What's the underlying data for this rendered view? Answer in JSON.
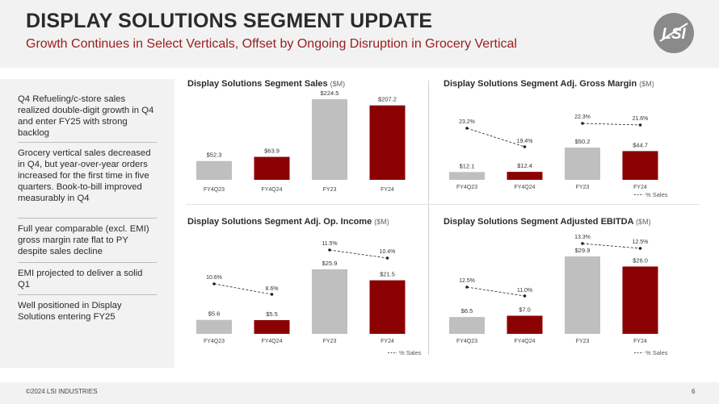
{
  "header": {
    "title": "DISPLAY SOLUTIONS SEGMENT UPDATE",
    "subtitle": "Growth Continues in Select Verticals, Offset by Ongoing Disruption in Grocery Vertical"
  },
  "sidebar": {
    "items": [
      "Q4 Refueling/c-store sales realized double-digit growth in Q4 and enter FY25 with strong backlog",
      "Grocery vertical sales decreased in Q4, but year-over-year orders  increased for the first time in five quarters. Book-to-bill improved measurably in Q4",
      "Full year comparable (excl. EMI) gross margin rate flat to PY despite sales decline",
      "EMI projected to deliver a solid Q1",
      "Well positioned in Display Solutions entering FY25"
    ]
  },
  "colors": {
    "gray_bar": "#bfbfbf",
    "red_bar": "#8b0000",
    "accent": "#9b1c1c"
  },
  "chart_data": [
    {
      "type": "bar",
      "title": "Display Solutions Segment Sales",
      "unit": "($M)",
      "categories": [
        "FY4Q23",
        "FY4Q24",
        "FY23",
        "FY24"
      ],
      "values": [
        52.3,
        63.9,
        224.5,
        207.2
      ],
      "value_labels": [
        "$52.3",
        "$63.9",
        "$224.5",
        "$207.2"
      ],
      "bar_colors": [
        "#bfbfbf",
        "#8b0000",
        "#bfbfbf",
        "#8b0000"
      ]
    },
    {
      "type": "bar",
      "title": "Display Solutions Segment Adj. Gross Margin",
      "unit": "($M)",
      "categories": [
        "FY4Q23",
        "FY4Q24",
        "FY23",
        "FY24"
      ],
      "values": [
        12.1,
        12.4,
        50.2,
        44.7
      ],
      "value_labels": [
        "$12.1",
        "$12.4",
        "$50.2",
        "$44.7"
      ],
      "bar_colors": [
        "#bfbfbf",
        "#8b0000",
        "#bfbfbf",
        "#8b0000"
      ],
      "pct_sales": [
        23.2,
        19.4,
        22.3,
        21.6
      ],
      "pct_labels": [
        "23.2%",
        "19.4%",
        "22.3%",
        "21.6%"
      ],
      "legend": "% Sales"
    },
    {
      "type": "bar",
      "title": "Display Solutions Segment Adj. Op. Income",
      "unit": "($M)",
      "categories": [
        "FY4Q23",
        "FY4Q24",
        "FY23",
        "FY24"
      ],
      "values": [
        5.6,
        5.5,
        25.9,
        21.5
      ],
      "value_labels": [
        "$5.6",
        "$5.5",
        "$25.9",
        "$21.5"
      ],
      "bar_colors": [
        "#bfbfbf",
        "#8b0000",
        "#bfbfbf",
        "#8b0000"
      ],
      "pct_sales": [
        10.6,
        8.6,
        11.5,
        10.4
      ],
      "pct_labels": [
        "10.6%",
        "8.6%",
        "11.5%",
        "10.4%"
      ],
      "legend": "% Sales"
    },
    {
      "type": "bar",
      "title": "Display Solutions Segment Adjusted EBITDA",
      "unit": "($M)",
      "categories": [
        "FY4Q23",
        "FY4Q24",
        "FY23",
        "FY24"
      ],
      "values": [
        6.5,
        7.0,
        29.9,
        26.0
      ],
      "value_labels": [
        "$6.5",
        "$7.0",
        "$29.9",
        "$26.0"
      ],
      "bar_colors": [
        "#bfbfbf",
        "#8b0000",
        "#bfbfbf",
        "#8b0000"
      ],
      "pct_sales": [
        12.5,
        11.0,
        13.3,
        12.5
      ],
      "pct_labels": [
        "12.5%",
        "11.0%",
        "13.3%",
        "12.5%"
      ],
      "legend": "% Sales"
    }
  ],
  "footer": {
    "copyright": "©2024 LSI INDUSTRIES",
    "page": "6"
  }
}
